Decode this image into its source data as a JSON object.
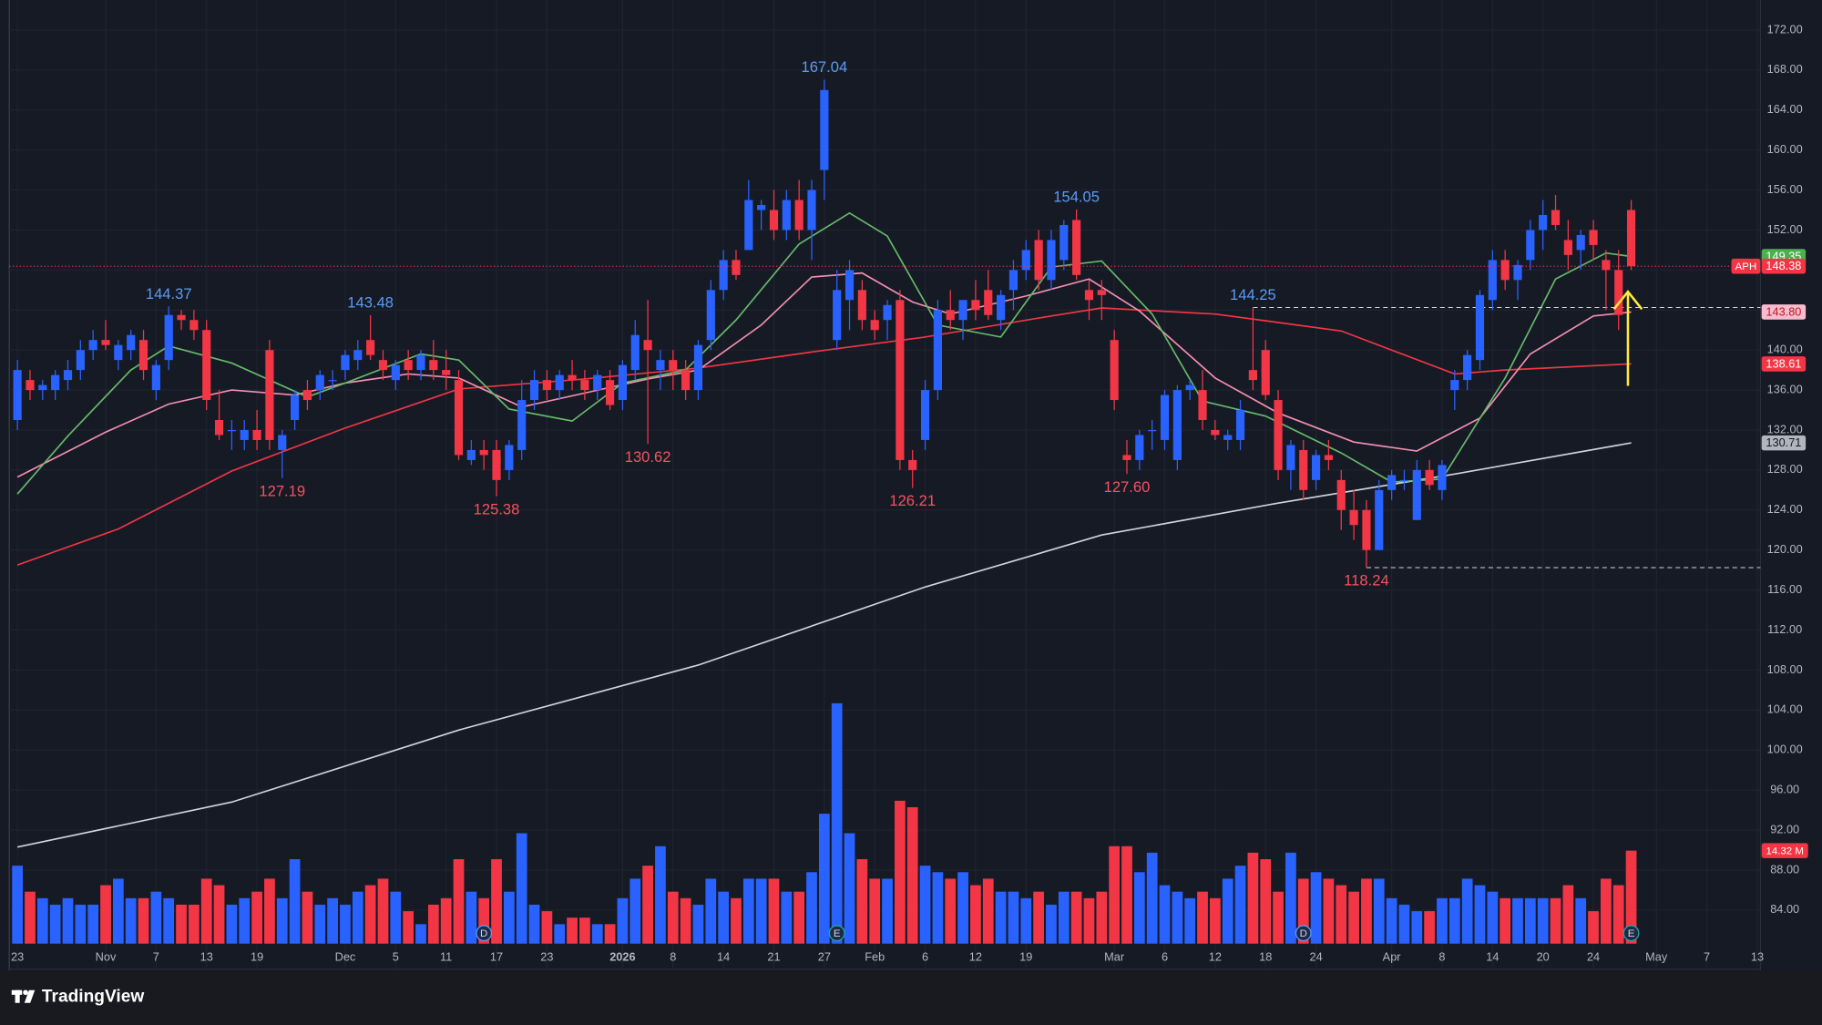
{
  "chart_data": {
    "type": "candlestick",
    "symbol": "APH",
    "brand": "TradingView",
    "up_color": "#2962ff",
    "down_color": "#f23645",
    "categories": [
      "23",
      null,
      null,
      null,
      null,
      null,
      null,
      "Nov",
      null,
      null,
      null,
      "7",
      null,
      null,
      null,
      "13",
      null,
      null,
      null,
      "19",
      null,
      null,
      null,
      null,
      null,
      null,
      "Dec",
      null,
      null,
      null,
      "5",
      null,
      null,
      null,
      "11",
      null,
      null,
      null,
      "17",
      null,
      null,
      null,
      "23",
      null,
      null,
      null,
      null,
      null,
      "2026",
      null,
      null,
      null,
      "8",
      null,
      null,
      null,
      "14",
      null,
      null,
      null,
      "21",
      null,
      null,
      null,
      "27",
      null,
      null,
      null,
      "Feb",
      null,
      null,
      null,
      "6",
      null,
      null,
      null,
      "12",
      null,
      null,
      null,
      "19",
      null,
      null,
      null,
      null,
      null,
      null,
      "Mar",
      null,
      null,
      null,
      "6",
      null,
      null,
      null,
      "12",
      null,
      null,
      null,
      "18",
      null,
      null,
      null,
      "24",
      null,
      null,
      null,
      null,
      null,
      "Apr",
      null,
      null,
      null,
      "8",
      null,
      null,
      null,
      "14",
      null,
      null,
      null,
      "20",
      null,
      null,
      null,
      "24",
      null,
      null,
      null,
      null,
      "May",
      null,
      null,
      null,
      "7",
      null,
      null,
      null,
      "13"
    ],
    "ohlc": [
      [
        133,
        139,
        132,
        138
      ],
      [
        137,
        138,
        135,
        136
      ],
      [
        136,
        137,
        135,
        136.5
      ],
      [
        136,
        138,
        135,
        137.5
      ],
      [
        137,
        139,
        136,
        138
      ],
      [
        138,
        141,
        137,
        140
      ],
      [
        140,
        142,
        139,
        141
      ],
      [
        141,
        143,
        140,
        140.5
      ],
      [
        139,
        141,
        138,
        140.5
      ],
      [
        140,
        142,
        139,
        141.5
      ],
      [
        141,
        142,
        137,
        138
      ],
      [
        136,
        139,
        135,
        138.5
      ],
      [
        139,
        144.37,
        138,
        143.5
      ],
      [
        143.5,
        144,
        142,
        143
      ],
      [
        143,
        144,
        141,
        142
      ],
      [
        142,
        143,
        134,
        135
      ],
      [
        133,
        136,
        131,
        131.5
      ],
      [
        132,
        133,
        130,
        132
      ],
      [
        131,
        133,
        130,
        132
      ],
      [
        132,
        134,
        130,
        131
      ],
      [
        140,
        141,
        130,
        131
      ],
      [
        130,
        132,
        127.19,
        131.5
      ],
      [
        133,
        136,
        132,
        135.5
      ],
      [
        136,
        137,
        134,
        135
      ],
      [
        136,
        138,
        135,
        137.5
      ],
      [
        137,
        138,
        136,
        137
      ],
      [
        138,
        140,
        137,
        139.5
      ],
      [
        139,
        141,
        138,
        140
      ],
      [
        141,
        143.48,
        139,
        139.5
      ],
      [
        139,
        140,
        137,
        138
      ],
      [
        137,
        139,
        136,
        138.5
      ],
      [
        139,
        140,
        137,
        138
      ],
      [
        138,
        140,
        137,
        139.5
      ],
      [
        139,
        141,
        137,
        138
      ],
      [
        138,
        140,
        136,
        137.5
      ],
      [
        137,
        138,
        129,
        129.5
      ],
      [
        129,
        131,
        128.5,
        130
      ],
      [
        130,
        131,
        128,
        129.5
      ],
      [
        130,
        131,
        125.38,
        127
      ],
      [
        128,
        131,
        127,
        130.5
      ],
      [
        130,
        137,
        129,
        135
      ],
      [
        135,
        138,
        134,
        137
      ],
      [
        137,
        138,
        135,
        136
      ],
      [
        136,
        138,
        135,
        137.5
      ],
      [
        137.5,
        139,
        136,
        137
      ],
      [
        137,
        138,
        135,
        136
      ],
      [
        136,
        138,
        135,
        137.5
      ],
      [
        137,
        138,
        134,
        134.5
      ],
      [
        135,
        139,
        134,
        138.5
      ],
      [
        138,
        143,
        137,
        141.5
      ],
      [
        141,
        145,
        130.62,
        140
      ],
      [
        138,
        140,
        136,
        139
      ],
      [
        139,
        140,
        136,
        138
      ],
      [
        138,
        139,
        135,
        136
      ],
      [
        136,
        141,
        135,
        140.5
      ],
      [
        141,
        147,
        140,
        146
      ],
      [
        146,
        150,
        145,
        149
      ],
      [
        149,
        150,
        147,
        147.5
      ],
      [
        150,
        157,
        150,
        155
      ],
      [
        154,
        155,
        152,
        154.5
      ],
      [
        154,
        156,
        151,
        152
      ],
      [
        152,
        156,
        151,
        155
      ],
      [
        155,
        157,
        151,
        152
      ],
      [
        152,
        157,
        149,
        156
      ],
      [
        158,
        167.04,
        155,
        166
      ],
      [
        141,
        148,
        140,
        146
      ],
      [
        145,
        149,
        142,
        148
      ],
      [
        146,
        147,
        142,
        143
      ],
      [
        143,
        144,
        141,
        142
      ],
      [
        143,
        145,
        141,
        144.5
      ],
      [
        145,
        146,
        128,
        129
      ],
      [
        129,
        130,
        126.21,
        128
      ],
      [
        131,
        137,
        130,
        136
      ],
      [
        136,
        145,
        135,
        144
      ],
      [
        144,
        146,
        142,
        143
      ],
      [
        143,
        145,
        141,
        145
      ],
      [
        145,
        147,
        143,
        144
      ],
      [
        146,
        148,
        143,
        143.5
      ],
      [
        143,
        146,
        142,
        145.5
      ],
      [
        146,
        149,
        144,
        148
      ],
      [
        148,
        151,
        147,
        150
      ],
      [
        151,
        152,
        146,
        147
      ],
      [
        147,
        152,
        146,
        151
      ],
      [
        149,
        153,
        148,
        152.5
      ],
      [
        153,
        154.05,
        147,
        147.5
      ],
      [
        146,
        147,
        143,
        145
      ],
      [
        146,
        147,
        143,
        145.5
      ],
      [
        141,
        142,
        134,
        135
      ],
      [
        129.5,
        131,
        127.6,
        129
      ],
      [
        129,
        132,
        128,
        131.5
      ],
      [
        132,
        133,
        130,
        132
      ],
      [
        131,
        136,
        130,
        135.5
      ],
      [
        129,
        136.5,
        128,
        136
      ],
      [
        136,
        137,
        135,
        136.5
      ],
      [
        136,
        138,
        132,
        133
      ],
      [
        132,
        133,
        131,
        131.5
      ],
      [
        131,
        132,
        130,
        131.5
      ],
      [
        131,
        135,
        130,
        134
      ],
      [
        138,
        144.25,
        136,
        137
      ],
      [
        140,
        141,
        135,
        135.5
      ],
      [
        135,
        136,
        127,
        128
      ],
      [
        128,
        131,
        126,
        130.5
      ],
      [
        130,
        131,
        125,
        126
      ],
      [
        127,
        130,
        126,
        129.5
      ],
      [
        129.5,
        131,
        128,
        129
      ],
      [
        127,
        128,
        122,
        124
      ],
      [
        124,
        126,
        121,
        122.5
      ],
      [
        124,
        125,
        118.24,
        120
      ],
      [
        120,
        127,
        120,
        126
      ],
      [
        126,
        128,
        125,
        127.5
      ],
      [
        127,
        128,
        126,
        127
      ],
      [
        123,
        129,
        123,
        128
      ],
      [
        128,
        129,
        126,
        126.5
      ],
      [
        126,
        129,
        125,
        128.5
      ],
      [
        136,
        138,
        134,
        137
      ],
      [
        137,
        140,
        136,
        139.5
      ],
      [
        139,
        146,
        138,
        145.5
      ],
      [
        145,
        150,
        144,
        149
      ],
      [
        149,
        150,
        146,
        147
      ],
      [
        147,
        149,
        145,
        148.5
      ],
      [
        149,
        153,
        148,
        152
      ],
      [
        152,
        155,
        150,
        153.5
      ],
      [
        154,
        155.5,
        152,
        152.5
      ],
      [
        151,
        153,
        148,
        149.5
      ],
      [
        150,
        152,
        148,
        151.5
      ],
      [
        152,
        153,
        149,
        150.5
      ],
      [
        149,
        150,
        144,
        148
      ],
      [
        148,
        150,
        142,
        143.5
      ],
      [
        154,
        155,
        148,
        148.38
      ],
      null,
      null,
      null,
      null,
      null,
      null,
      null,
      null,
      null,
      null
    ],
    "volume": [
      12,
      8,
      7,
      6,
      7,
      6,
      6,
      9,
      10,
      7,
      7,
      8,
      7,
      6,
      6,
      10,
      9,
      6,
      7,
      8,
      10,
      7,
      13,
      8,
      6,
      7,
      6,
      8,
      9,
      10,
      8,
      5,
      3,
      6,
      7,
      13,
      8,
      7,
      13,
      8,
      17,
      6,
      5,
      3,
      4,
      4,
      3,
      3,
      7,
      10,
      12,
      15,
      8,
      7,
      6,
      10,
      8,
      7,
      10,
      10,
      10,
      8,
      8,
      11,
      20,
      37,
      17,
      13,
      10,
      10,
      22,
      21,
      12,
      11,
      10,
      11,
      9,
      10,
      8,
      8,
      7,
      8,
      6,
      8,
      8,
      7,
      8,
      15,
      15,
      11,
      14,
      9,
      8,
      7,
      8,
      7,
      10,
      12,
      14,
      13,
      8,
      14,
      10,
      11,
      10,
      9,
      8,
      10,
      10,
      7,
      6,
      5,
      5,
      7,
      7,
      10,
      9,
      8,
      7,
      7,
      7,
      7,
      7,
      9,
      7,
      5,
      10,
      9,
      14.32,
      null,
      null,
      null,
      null,
      null,
      null,
      null,
      null,
      null,
      null
    ],
    "volume_tag": {
      "value": 14.32,
      "label": "14.32 M"
    },
    "ylim": [
      78.2,
      175
    ],
    "yticks": [
      {
        "value": 84,
        "label": "84.00"
      },
      {
        "value": 88,
        "label": "88.00"
      },
      {
        "value": 92,
        "label": "92.00"
      },
      {
        "value": 96,
        "label": "96.00"
      },
      {
        "value": 100,
        "label": "100.00"
      },
      {
        "value": 104,
        "label": "104.00"
      },
      {
        "value": 108,
        "label": "108.00"
      },
      {
        "value": 112,
        "label": "112.00"
      },
      {
        "value": 116,
        "label": "116.00"
      },
      {
        "value": 120,
        "label": "120.00"
      },
      {
        "value": 124,
        "label": "124.00"
      },
      {
        "value": 128,
        "label": "128.00"
      },
      {
        "value": 132,
        "label": "132.00"
      },
      {
        "value": 136,
        "label": "136.00"
      },
      {
        "value": 140,
        "label": "140.00"
      },
      {
        "value": 144,
        "label": "144.00"
      },
      {
        "value": 148,
        "label": "148.00"
      },
      {
        "value": 152,
        "label": "152.00"
      },
      {
        "value": 156,
        "label": "156.00"
      },
      {
        "value": 160,
        "label": "160.00"
      },
      {
        "value": 164,
        "label": "164.00"
      },
      {
        "value": 168,
        "label": "168.00"
      },
      {
        "value": 172,
        "label": "172.00"
      }
    ],
    "grid": true,
    "moving_averages": [
      {
        "color": "#d1d4dc",
        "x": [
          0,
          17,
          35,
          54,
          72,
          86,
          100,
          114,
          128
        ],
        "values": [
          90.3,
          94.8,
          102,
          108.5,
          116.3,
          121.5,
          124.7,
          127.6,
          130.71
        ]
      },
      {
        "color": "#f23645",
        "x": [
          0,
          8,
          17,
          26,
          35,
          45,
          54,
          63,
          72,
          82,
          86,
          95,
          105,
          114,
          118,
          128
        ],
        "values": [
          118.5,
          122.1,
          127.9,
          132.2,
          136.1,
          137.1,
          138.2,
          139.8,
          141.3,
          143.4,
          144.2,
          143.6,
          141.9,
          137.6,
          138,
          138.61
        ]
      },
      {
        "color": "#f48fb1",
        "x": [
          0,
          7,
          12,
          17,
          22,
          26,
          31,
          35,
          40,
          45,
          50,
          54,
          59,
          63,
          67,
          71,
          74,
          80,
          85,
          89,
          95,
          100,
          106,
          111,
          116,
          120,
          125,
          128
        ],
        "values": [
          127.3,
          131.8,
          134.6,
          136,
          135.5,
          136.7,
          137.6,
          137.2,
          134.3,
          135.7,
          137.1,
          138,
          142.5,
          147.3,
          147.7,
          144.8,
          143.6,
          145.4,
          147.1,
          143.9,
          137.2,
          133.7,
          130.8,
          129.9,
          133.2,
          139.6,
          143.4,
          143.8
        ]
      },
      {
        "color": "#66bb6a",
        "x": [
          0,
          4,
          9,
          12,
          17,
          23,
          26,
          32,
          35,
          39,
          44,
          48,
          53,
          57,
          62,
          66,
          69,
          73,
          78,
          82,
          86,
          90,
          94,
          99,
          105,
          109,
          113,
          118,
          122,
          126,
          128
        ],
        "values": [
          125.6,
          131.4,
          138,
          140.4,
          138.7,
          135.3,
          136.7,
          139.6,
          139,
          134.1,
          132.9,
          136.7,
          138,
          143,
          150.6,
          153.7,
          151.4,
          142.5,
          141.3,
          148.3,
          148.9,
          143.6,
          134.9,
          133.4,
          129.7,
          126.8,
          127.1,
          137.2,
          147.1,
          149.7,
          149.35
        ]
      }
    ],
    "price_tags": [
      {
        "value": 149.35,
        "label": "149.35",
        "color": "#4caf50",
        "text_color": "#ffffff"
      },
      {
        "value": 148.38,
        "label": "148.38",
        "color": "#f23645",
        "text_color": "#ffffff"
      },
      {
        "value": 143.8,
        "label": "143.80",
        "color": "#f8bbd0",
        "text_color": "#b71c1c"
      },
      {
        "value": 138.61,
        "label": "138.61",
        "color": "#f23645",
        "text_color": "#ffffff"
      },
      {
        "value": 130.71,
        "label": "130.71",
        "color": "#b2b5be",
        "text_color": "#131722"
      }
    ],
    "extremes": [
      {
        "index": 12,
        "value": 144.37,
        "label": "144.37",
        "color": "#5b9cf6"
      },
      {
        "index": 28,
        "value": 143.48,
        "label": "143.48",
        "color": "#5b9cf6"
      },
      {
        "index": 64,
        "value": 167.04,
        "label": "167.04",
        "color": "#5b9cf6"
      },
      {
        "index": 84,
        "value": 154.05,
        "label": "154.05",
        "color": "#5b9cf6"
      },
      {
        "index": 98,
        "value": 144.25,
        "label": "144.25",
        "color": "#5b9cf6"
      },
      {
        "index": 21,
        "value": 127.19,
        "label": "127.19",
        "color": "#f7525f"
      },
      {
        "index": 38,
        "value": 125.38,
        "label": "125.38",
        "color": "#f7525f"
      },
      {
        "index": 50,
        "value": 130.62,
        "label": "130.62",
        "color": "#f7525f"
      },
      {
        "index": 71,
        "value": 126.21,
        "label": "126.21",
        "color": "#f7525f"
      },
      {
        "index": 88,
        "value": 127.6,
        "label": "127.60",
        "color": "#f7525f"
      },
      {
        "index": 107,
        "value": 118.24,
        "label": "118.24",
        "color": "#f7525f"
      }
    ],
    "levels": [
      {
        "value": 144.25,
        "from": 98
      },
      {
        "value": 118.24,
        "from": 107
      }
    ],
    "events": [
      {
        "label": "D",
        "index": 37
      },
      {
        "label": "E",
        "index": 65
      },
      {
        "label": "D",
        "index": 102
      },
      {
        "label": "E",
        "index": 128
      }
    ]
  }
}
